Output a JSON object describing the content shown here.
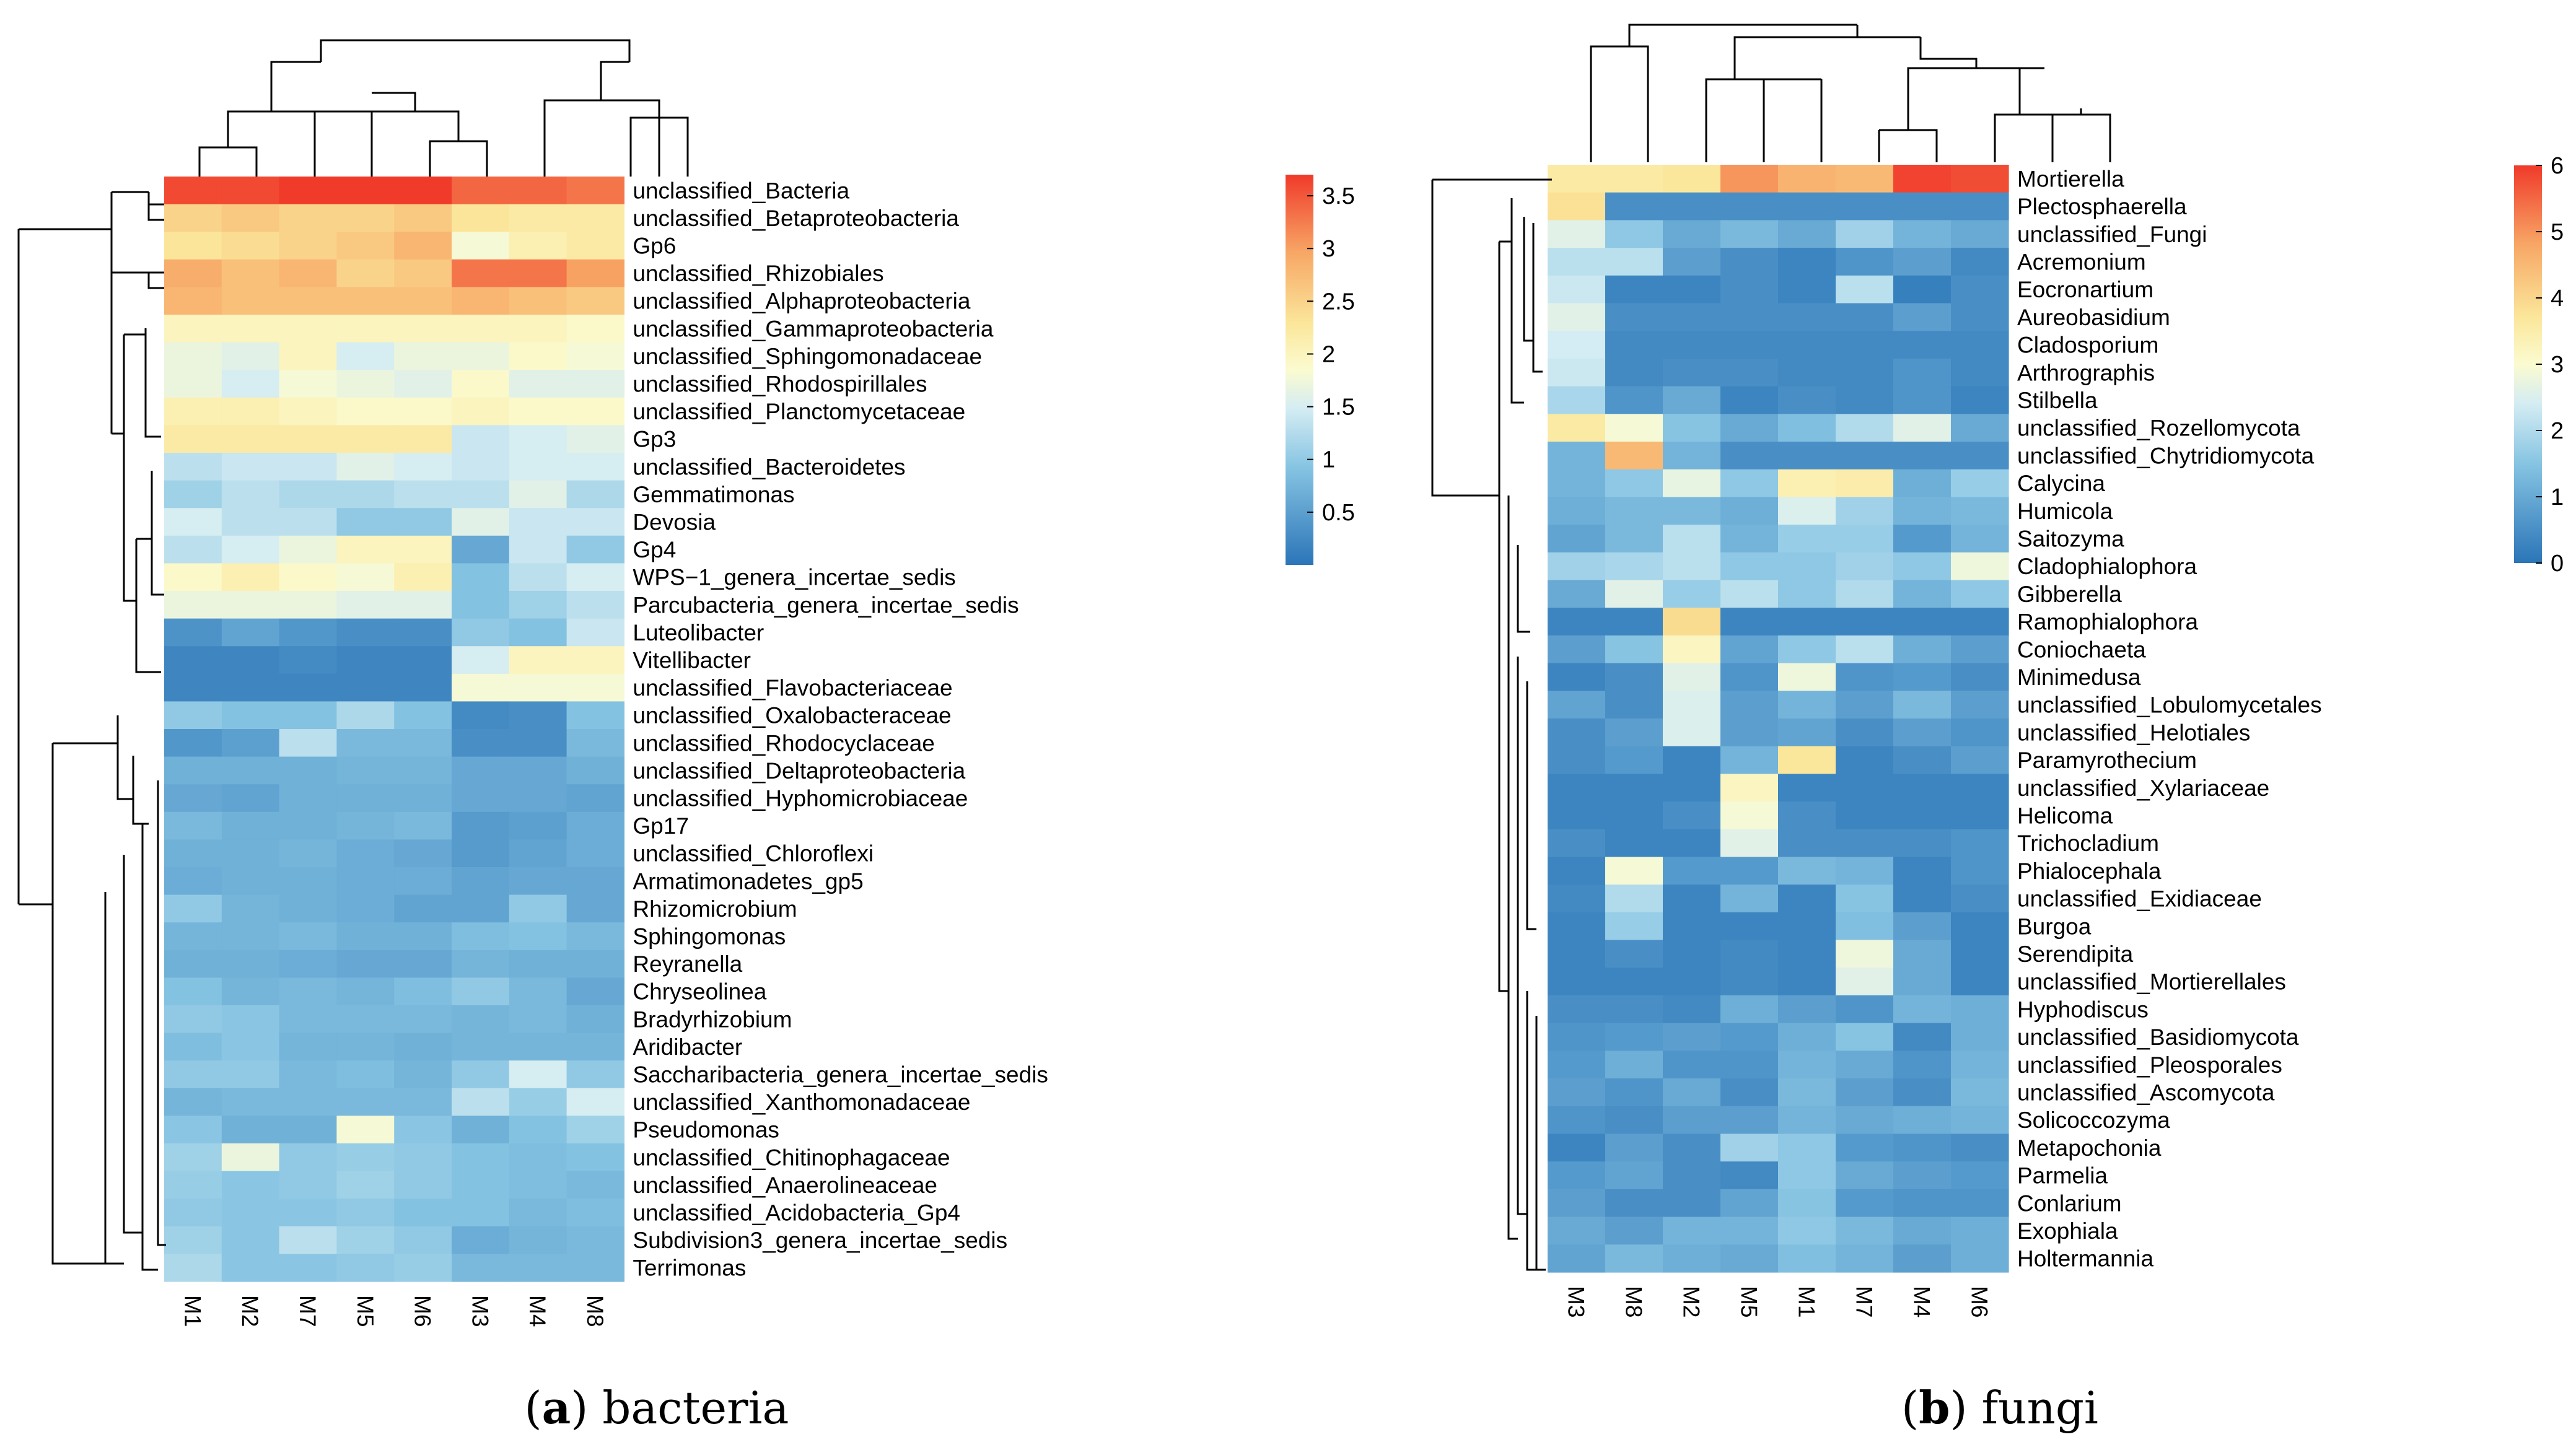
{
  "chart_data": [
    {
      "type": "heatmap",
      "title": "bacteria",
      "caption_letter": "a",
      "caption_text": ") bacteria",
      "caption_open": "(",
      "columns": [
        "M1",
        "M2",
        "M7",
        "M5",
        "M6",
        "M3",
        "M4",
        "M8"
      ],
      "colorbar": {
        "min": 0,
        "max": 3.7,
        "ticks": [
          "3.5",
          "3",
          "2.5",
          "2",
          "1.5",
          "1",
          "0.5"
        ],
        "tick_values": [
          3.5,
          3,
          2.5,
          2,
          1.5,
          1,
          0.5
        ]
      },
      "rows": [
        {
          "name": "unclassified_Bacteria",
          "values": [
            3.6,
            3.6,
            3.7,
            3.7,
            3.7,
            3.4,
            3.4,
            3.3
          ]
        },
        {
          "name": "unclassified_Betaproteobacteria",
          "values": [
            2.5,
            2.6,
            2.5,
            2.5,
            2.6,
            2.3,
            2.2,
            2.2
          ]
        },
        {
          "name": "Gp6",
          "values": [
            2.3,
            2.4,
            2.5,
            2.6,
            2.8,
            1.8,
            2.1,
            2.2
          ]
        },
        {
          "name": "unclassified_Rhizobiales",
          "values": [
            2.9,
            2.7,
            2.8,
            2.5,
            2.6,
            3.3,
            3.3,
            3.0
          ]
        },
        {
          "name": "unclassified_Alphaproteobacteria",
          "values": [
            2.8,
            2.7,
            2.7,
            2.7,
            2.7,
            2.8,
            2.7,
            2.6
          ]
        },
        {
          "name": "unclassified_Gammaproteobacteria",
          "values": [
            2.0,
            2.0,
            2.0,
            2.0,
            2.0,
            2.0,
            2.0,
            1.9
          ]
        },
        {
          "name": "unclassified_Sphingomonadaceae",
          "values": [
            1.7,
            1.6,
            2.0,
            1.5,
            1.7,
            1.7,
            1.9,
            1.8
          ]
        },
        {
          "name": "unclassified_Rhodospirillales",
          "values": [
            1.7,
            1.5,
            1.8,
            1.7,
            1.6,
            1.9,
            1.6,
            1.6
          ]
        },
        {
          "name": "unclassified_Planctomycetaceae",
          "values": [
            2.1,
            2.1,
            2.0,
            1.9,
            1.9,
            2.0,
            1.9,
            1.9
          ]
        },
        {
          "name": "Gp3",
          "values": [
            2.2,
            2.2,
            2.2,
            2.2,
            2.2,
            1.4,
            1.5,
            1.6
          ]
        },
        {
          "name": "unclassified_Bacteroidetes",
          "values": [
            1.3,
            1.4,
            1.4,
            1.6,
            1.5,
            1.4,
            1.5,
            1.5
          ]
        },
        {
          "name": "Gemmatimonas",
          "values": [
            1.1,
            1.3,
            1.2,
            1.2,
            1.3,
            1.3,
            1.6,
            1.2
          ]
        },
        {
          "name": "Devosia",
          "values": [
            1.5,
            1.3,
            1.3,
            1.0,
            1.0,
            1.6,
            1.4,
            1.4
          ]
        },
        {
          "name": "Gp4",
          "values": [
            1.3,
            1.5,
            1.7,
            2.0,
            2.0,
            0.6,
            1.4,
            1.0
          ]
        },
        {
          "name": "WPS−1_genera_incertae_sedis",
          "values": [
            1.9,
            2.1,
            1.9,
            1.8,
            2.1,
            0.9,
            1.3,
            1.5
          ]
        },
        {
          "name": "Parcubacteria_genera_incertae_sedis",
          "values": [
            1.7,
            1.7,
            1.7,
            1.6,
            1.6,
            0.9,
            1.1,
            1.3
          ]
        },
        {
          "name": "Luteolibacter",
          "values": [
            0.35,
            0.55,
            0.4,
            0.3,
            0.3,
            1.0,
            0.9,
            1.4
          ]
        },
        {
          "name": "Vitellibacter",
          "values": [
            0.2,
            0.2,
            0.25,
            0.2,
            0.2,
            1.5,
            2.0,
            2.0
          ]
        },
        {
          "name": "unclassified_Flavobacteriaceae",
          "values": [
            0.2,
            0.2,
            0.2,
            0.2,
            0.2,
            1.8,
            1.8,
            1.8
          ]
        },
        {
          "name": "unclassified_Oxalobacteraceae",
          "values": [
            1.0,
            0.9,
            0.9,
            1.2,
            0.9,
            0.25,
            0.3,
            0.9
          ]
        },
        {
          "name": "unclassified_Rhodocyclaceae",
          "values": [
            0.4,
            0.5,
            1.3,
            0.8,
            0.8,
            0.3,
            0.3,
            0.8
          ]
        },
        {
          "name": "unclassified_Deltaproteobacteria",
          "values": [
            0.7,
            0.7,
            0.7,
            0.75,
            0.75,
            0.6,
            0.6,
            0.7
          ]
        },
        {
          "name": "unclassified_Hyphomicrobiaceae",
          "values": [
            0.6,
            0.55,
            0.7,
            0.7,
            0.7,
            0.6,
            0.6,
            0.55
          ]
        },
        {
          "name": "Gp17",
          "values": [
            0.8,
            0.7,
            0.7,
            0.75,
            0.8,
            0.45,
            0.5,
            0.65
          ]
        },
        {
          "name": "unclassified_Chloroflexi",
          "values": [
            0.7,
            0.7,
            0.75,
            0.65,
            0.6,
            0.45,
            0.55,
            0.65
          ]
        },
        {
          "name": "Armatimonadetes_gp5",
          "values": [
            0.65,
            0.7,
            0.7,
            0.65,
            0.65,
            0.55,
            0.6,
            0.6
          ]
        },
        {
          "name": "Rhizomicrobium",
          "values": [
            1.0,
            0.75,
            0.7,
            0.65,
            0.55,
            0.55,
            1.0,
            0.6
          ]
        },
        {
          "name": "Sphingomonas",
          "values": [
            0.75,
            0.75,
            0.8,
            0.7,
            0.7,
            0.85,
            0.9,
            0.8
          ]
        },
        {
          "name": "Reyranella",
          "values": [
            0.7,
            0.7,
            0.65,
            0.6,
            0.6,
            0.75,
            0.7,
            0.7
          ]
        },
        {
          "name": "Chryseolinea",
          "values": [
            0.9,
            0.75,
            0.8,
            0.75,
            0.85,
            1.0,
            0.8,
            0.6
          ]
        },
        {
          "name": "Bradyrhizobium",
          "values": [
            1.0,
            0.95,
            0.8,
            0.8,
            0.8,
            0.75,
            0.8,
            0.7
          ]
        },
        {
          "name": "Aridibacter",
          "values": [
            0.85,
            0.95,
            0.75,
            0.75,
            0.7,
            0.75,
            0.75,
            0.75
          ]
        },
        {
          "name": "Saccharibacteria_genera_incertae_sedis",
          "values": [
            1.0,
            1.0,
            0.8,
            0.85,
            0.75,
            1.0,
            1.5,
            1.0
          ]
        },
        {
          "name": "unclassified_Xanthomonadaceae",
          "values": [
            0.75,
            0.8,
            0.8,
            0.8,
            0.8,
            1.3,
            1.05,
            1.5
          ]
        },
        {
          "name": "Pseudomonas",
          "values": [
            0.95,
            0.7,
            0.7,
            1.8,
            0.95,
            0.7,
            0.9,
            1.1
          ]
        },
        {
          "name": "unclassified_Chitinophagaceae",
          "values": [
            1.1,
            1.7,
            1.0,
            1.05,
            1.0,
            0.9,
            0.85,
            0.9
          ]
        },
        {
          "name": "unclassified_Anaerolineaceae",
          "values": [
            1.05,
            0.95,
            1.0,
            1.1,
            1.0,
            0.9,
            0.85,
            0.8
          ]
        },
        {
          "name": "unclassified_Acidobacteria_Gp4",
          "values": [
            1.0,
            0.95,
            0.95,
            1.0,
            0.9,
            0.9,
            0.8,
            0.85
          ]
        },
        {
          "name": "Subdivision3_genera_incertae_sedis",
          "values": [
            1.1,
            0.95,
            1.3,
            1.1,
            1.0,
            0.65,
            0.75,
            0.8
          ]
        },
        {
          "name": "Terrimonas",
          "values": [
            1.2,
            0.95,
            0.95,
            1.0,
            1.05,
            0.8,
            0.8,
            0.8
          ]
        }
      ]
    },
    {
      "type": "heatmap",
      "title": "fungi",
      "caption_letter": "b",
      "caption_text": ") fungi",
      "caption_open": "(",
      "columns": [
        "M3",
        "M8",
        "M2",
        "M5",
        "M1",
        "M7",
        "M4",
        "M6"
      ],
      "colorbar": {
        "min": 0,
        "max": 6,
        "ticks": [
          "6",
          "5",
          "4",
          "3",
          "2",
          "1",
          "0"
        ],
        "tick_values": [
          6,
          5,
          4,
          3,
          2,
          1,
          0
        ]
      },
      "rows": [
        {
          "name": "Mortierella",
          "values": [
            3.6,
            3.6,
            3.7,
            5.0,
            4.6,
            4.5,
            5.9,
            5.8
          ]
        },
        {
          "name": "Plectosphaerella",
          "values": [
            3.8,
            0.5,
            0.5,
            0.5,
            0.5,
            0.5,
            0.5,
            0.5
          ]
        },
        {
          "name": "unclassified_Fungi",
          "values": [
            2.6,
            1.6,
            1.0,
            1.3,
            1.0,
            1.8,
            1.2,
            1.0
          ]
        },
        {
          "name": "Acremonium",
          "values": [
            2.1,
            2.1,
            0.8,
            0.5,
            0.3,
            0.6,
            0.8,
            0.4
          ]
        },
        {
          "name": "Eocronartium",
          "values": [
            2.3,
            0.3,
            0.3,
            0.5,
            0.3,
            2.1,
            0.2,
            0.5
          ]
        },
        {
          "name": "Aureobasidium",
          "values": [
            2.6,
            0.5,
            0.5,
            0.5,
            0.5,
            0.5,
            0.8,
            0.5
          ]
        },
        {
          "name": "Cladosporium",
          "values": [
            2.4,
            0.4,
            0.4,
            0.4,
            0.4,
            0.4,
            0.4,
            0.4
          ]
        },
        {
          "name": "Arthrographis",
          "values": [
            2.3,
            0.4,
            0.5,
            0.5,
            0.4,
            0.4,
            0.6,
            0.4
          ]
        },
        {
          "name": "Stilbella",
          "values": [
            1.9,
            0.6,
            1.0,
            0.3,
            0.5,
            0.4,
            0.6,
            0.3
          ]
        },
        {
          "name": "unclassified_Rozellomycota",
          "values": [
            3.6,
            2.9,
            1.5,
            1.0,
            1.4,
            2.0,
            2.6,
            1.0
          ]
        },
        {
          "name": "unclassified_Chytridiomycota",
          "values": [
            1.2,
            4.5,
            1.2,
            0.5,
            0.5,
            0.5,
            0.5,
            0.5
          ]
        },
        {
          "name": "Calycina",
          "values": [
            1.2,
            1.6,
            2.7,
            1.6,
            3.4,
            3.5,
            1.1,
            1.7
          ]
        },
        {
          "name": "Humicola",
          "values": [
            1.1,
            1.3,
            1.3,
            1.1,
            2.5,
            1.8,
            1.2,
            1.3
          ]
        },
        {
          "name": "Saitozyma",
          "values": [
            0.9,
            1.3,
            2.1,
            1.2,
            1.7,
            1.7,
            0.7,
            1.2
          ]
        },
        {
          "name": "Cladophialophora",
          "values": [
            1.8,
            1.9,
            2.1,
            1.6,
            1.6,
            1.8,
            1.6,
            2.8
          ]
        },
        {
          "name": "Gibberella",
          "values": [
            1.0,
            2.6,
            1.7,
            2.1,
            1.6,
            2.0,
            1.2,
            1.6
          ]
        },
        {
          "name": "Ramophialophora",
          "values": [
            0.3,
            0.3,
            3.9,
            0.3,
            0.3,
            0.3,
            0.3,
            0.3
          ]
        },
        {
          "name": "Coniochaeta",
          "values": [
            0.8,
            1.5,
            3.2,
            0.9,
            1.6,
            2.1,
            1.1,
            0.8
          ]
        },
        {
          "name": "Minimedusa",
          "values": [
            0.3,
            0.5,
            2.6,
            0.6,
            2.8,
            0.6,
            0.7,
            0.5
          ]
        },
        {
          "name": "unclassified_Lobulomycetales",
          "values": [
            0.9,
            0.5,
            2.5,
            0.8,
            1.2,
            0.8,
            1.3,
            0.8
          ]
        },
        {
          "name": "unclassified_Helotiales",
          "values": [
            0.5,
            0.8,
            2.5,
            0.8,
            0.9,
            0.5,
            0.8,
            0.6
          ]
        },
        {
          "name": "Paramyrothecium",
          "values": [
            0.5,
            0.7,
            0.3,
            1.2,
            3.7,
            0.3,
            0.5,
            0.8
          ]
        },
        {
          "name": "unclassified_Xylariaceae",
          "values": [
            0.3,
            0.3,
            0.3,
            3.2,
            0.3,
            0.3,
            0.3,
            0.3
          ]
        },
        {
          "name": "Helicoma",
          "values": [
            0.3,
            0.3,
            0.5,
            2.9,
            0.5,
            0.3,
            0.3,
            0.3
          ]
        },
        {
          "name": "Trichocladium",
          "values": [
            0.5,
            0.3,
            0.3,
            2.6,
            0.5,
            0.5,
            0.5,
            0.6
          ]
        },
        {
          "name": "Phialocephala",
          "values": [
            0.3,
            2.9,
            0.7,
            0.7,
            1.3,
            1.2,
            0.3,
            0.6
          ]
        },
        {
          "name": "unclassified_Exidiaceae",
          "values": [
            0.4,
            2.0,
            0.3,
            1.2,
            0.3,
            1.5,
            0.3,
            0.5
          ]
        },
        {
          "name": "Burgoa",
          "values": [
            0.3,
            1.7,
            0.3,
            0.3,
            0.3,
            1.4,
            0.8,
            0.3
          ]
        },
        {
          "name": "Serendipita",
          "values": [
            0.3,
            0.5,
            0.3,
            0.4,
            0.3,
            2.8,
            1.0,
            0.3
          ]
        },
        {
          "name": "unclassified_Mortierellales",
          "values": [
            0.3,
            0.3,
            0.3,
            0.4,
            0.3,
            2.6,
            1.0,
            0.3
          ]
        },
        {
          "name": "Hyphodiscus",
          "values": [
            0.5,
            0.5,
            0.4,
            1.1,
            0.8,
            0.6,
            1.2,
            1.1
          ]
        },
        {
          "name": "unclassified_Basidiomycota",
          "values": [
            0.6,
            0.7,
            0.8,
            0.7,
            1.1,
            1.5,
            0.4,
            1.1
          ]
        },
        {
          "name": "unclassified_Pleosporales",
          "values": [
            0.7,
            1.1,
            0.6,
            0.6,
            1.2,
            1.0,
            0.6,
            1.2
          ]
        },
        {
          "name": "unclassified_Ascomycota",
          "values": [
            0.8,
            0.6,
            1.0,
            0.5,
            1.3,
            0.8,
            0.5,
            1.3
          ]
        },
        {
          "name": "Solicoccozyma",
          "values": [
            0.6,
            0.5,
            0.8,
            0.8,
            1.2,
            1.0,
            1.1,
            1.2
          ]
        },
        {
          "name": "Metapochonia",
          "values": [
            0.3,
            0.8,
            0.5,
            1.8,
            1.6,
            0.7,
            0.6,
            0.5
          ]
        },
        {
          "name": "Parmelia",
          "values": [
            0.7,
            0.9,
            0.5,
            0.4,
            1.6,
            1.0,
            0.8,
            0.7
          ]
        },
        {
          "name": "Conlarium",
          "values": [
            0.8,
            0.5,
            0.5,
            0.9,
            1.5,
            0.7,
            0.6,
            0.6
          ]
        },
        {
          "name": "Exophiala",
          "values": [
            1.0,
            0.8,
            1.2,
            1.2,
            1.6,
            1.3,
            1.0,
            1.1
          ]
        },
        {
          "name": "Holtermannia",
          "values": [
            0.9,
            1.3,
            1.1,
            1.0,
            1.4,
            1.2,
            0.8,
            1.1
          ]
        }
      ]
    }
  ]
}
